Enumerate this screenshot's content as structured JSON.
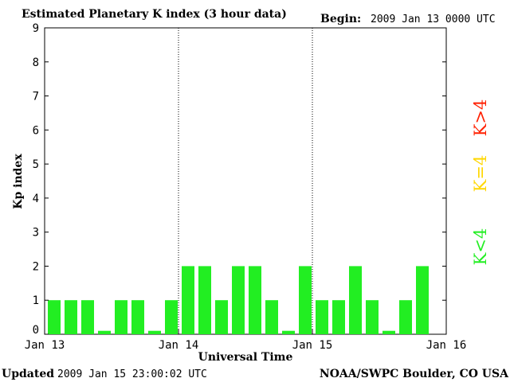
{
  "header": {
    "title": "Estimated Planetary K index (3 hour data)",
    "begin_label": "Begin:",
    "begin_value": "2009 Jan 13 0000 UTC"
  },
  "footer": {
    "updated_label": "Updated",
    "updated_value": "2009 Jan 15 23:00:02 UTC",
    "source": "NOAA/SWPC Boulder, CO USA"
  },
  "legend": [
    {
      "label": "K>4",
      "color": "#ff2000"
    },
    {
      "label": "K=4",
      "color": "#ffd700"
    },
    {
      "label": "K<4",
      "color": "#22ee22"
    }
  ],
  "chart_data": {
    "type": "bar",
    "title": "Estimated Planetary K index (3 hour data)",
    "xlabel": "Universal Time",
    "ylabel": "Kp index",
    "ylim": [
      0,
      9
    ],
    "yticks": [
      "0",
      "1",
      "2",
      "3",
      "4",
      "5",
      "6",
      "7",
      "8",
      "9"
    ],
    "xtick_labels": [
      "Jan 13",
      "Jan 14",
      "Jan 15",
      "Jan 16"
    ],
    "day_dividers": [
      "Jan 14",
      "Jan 15"
    ],
    "bar_color": "#22ee22",
    "values": [
      1,
      1,
      1,
      0.1,
      1,
      1,
      0.1,
      1,
      2,
      2,
      1,
      2,
      2,
      1,
      0.1,
      2,
      1,
      1,
      2,
      1,
      0.1,
      1,
      2
    ]
  }
}
